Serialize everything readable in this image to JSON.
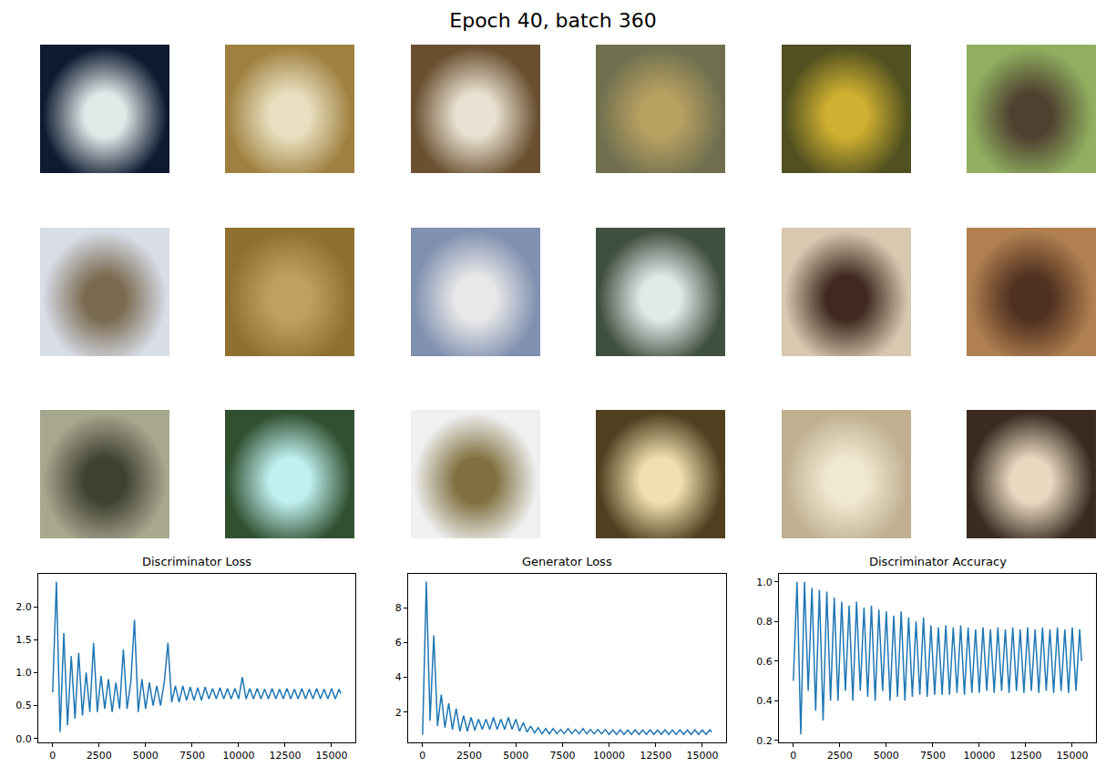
{
  "title": "Epoch 40, batch 360",
  "samples": [
    {
      "colors": [
        "#0e1a30",
        "#e0e8e8"
      ]
    },
    {
      "colors": [
        "#a08040",
        "#e8e0c0"
      ]
    },
    {
      "colors": [
        "#6a5030",
        "#e8e0d0"
      ]
    },
    {
      "colors": [
        "#707050",
        "#b8a060"
      ]
    },
    {
      "colors": [
        "#505020",
        "#d0b030"
      ]
    },
    {
      "colors": [
        "#90b060",
        "#504030"
      ]
    },
    {
      "colors": [
        "#d8dde8",
        "#7a6a50"
      ]
    },
    {
      "colors": [
        "#907030",
        "#c0a060"
      ]
    },
    {
      "colors": [
        "#8090b0",
        "#e8e8e8"
      ]
    },
    {
      "colors": [
        "#405040",
        "#e0e8e8"
      ]
    },
    {
      "colors": [
        "#d8c8b0",
        "#402a20"
      ]
    },
    {
      "colors": [
        "#b08050",
        "#503020"
      ]
    },
    {
      "colors": [
        "#a8a890",
        "#404030"
      ]
    },
    {
      "colors": [
        "#305030",
        "#c0f0f0"
      ]
    },
    {
      "colors": [
        "#f0f0f0",
        "#807040"
      ]
    },
    {
      "colors": [
        "#504020",
        "#f0e0b0"
      ]
    },
    {
      "colors": [
        "#c0b090",
        "#f0e8d0"
      ]
    },
    {
      "colors": [
        "#3a2a20",
        "#e8d8c0"
      ]
    }
  ],
  "chart_data": [
    {
      "type": "line",
      "title": "Discriminator Loss",
      "color": "#1f77b4",
      "grid": false,
      "x": [
        0,
        200,
        400,
        600,
        800,
        1000,
        1200,
        1400,
        1600,
        1800,
        2000,
        2200,
        2400,
        2600,
        2800,
        3000,
        3200,
        3400,
        3600,
        3800,
        4000,
        4200,
        4400,
        4600,
        4800,
        5000,
        5200,
        5400,
        5600,
        5800,
        6000,
        6200,
        6400,
        6600,
        6800,
        7000,
        7200,
        7400,
        7600,
        7800,
        8000,
        8200,
        8400,
        8600,
        8800,
        9000,
        9200,
        9400,
        9600,
        9800,
        10000,
        10200,
        10400,
        10600,
        10800,
        11000,
        11200,
        11400,
        11600,
        11800,
        12000,
        12200,
        12400,
        12600,
        12800,
        13000,
        13200,
        13400,
        13600,
        13800,
        14000,
        14200,
        14400,
        14600,
        14800,
        15000,
        15200,
        15400,
        15500
      ],
      "values": [
        0.7,
        2.38,
        0.1,
        1.6,
        0.2,
        1.25,
        0.3,
        1.3,
        0.35,
        1.0,
        0.4,
        1.45,
        0.4,
        0.95,
        0.45,
        0.9,
        0.4,
        0.85,
        0.45,
        1.35,
        0.45,
        0.85,
        1.8,
        0.4,
        0.9,
        0.45,
        0.85,
        0.5,
        0.8,
        0.5,
        0.85,
        1.45,
        0.55,
        0.8,
        0.55,
        0.8,
        0.58,
        0.78,
        0.58,
        0.77,
        0.58,
        0.78,
        0.6,
        0.76,
        0.6,
        0.77,
        0.6,
        0.76,
        0.6,
        0.76,
        0.6,
        0.93,
        0.6,
        0.76,
        0.6,
        0.76,
        0.6,
        0.75,
        0.6,
        0.76,
        0.6,
        0.75,
        0.6,
        0.76,
        0.6,
        0.75,
        0.6,
        0.76,
        0.6,
        0.75,
        0.6,
        0.76,
        0.6,
        0.75,
        0.6,
        0.76,
        0.6,
        0.75,
        0.68
      ],
      "xlim": [
        -775,
        16275
      ],
      "ylim": [
        -0.06,
        2.5
      ],
      "xticks": [
        0,
        2500,
        5000,
        7500,
        10000,
        12500,
        15000
      ],
      "yticks": [
        {
          "value": 0,
          "label": "0.0"
        },
        0.5,
        {
          "value": 1,
          "label": "1.0"
        },
        1.5,
        {
          "value": 2,
          "label": "2.0"
        }
      ]
    },
    {
      "type": "line",
      "title": "Generator Loss",
      "color": "#1f77b4",
      "grid": false,
      "x": [
        0,
        200,
        400,
        600,
        800,
        1000,
        1200,
        1400,
        1600,
        1800,
        2000,
        2200,
        2400,
        2600,
        2800,
        3000,
        3200,
        3400,
        3600,
        3800,
        4000,
        4200,
        4400,
        4600,
        4800,
        5000,
        5200,
        5400,
        5600,
        5800,
        6000,
        6200,
        6400,
        6600,
        6800,
        7000,
        7200,
        7400,
        7600,
        7800,
        8000,
        8200,
        8400,
        8600,
        8800,
        9000,
        9200,
        9400,
        9600,
        9800,
        10000,
        10200,
        10400,
        10600,
        10800,
        11000,
        11200,
        11400,
        11600,
        11800,
        12000,
        12200,
        12400,
        12600,
        12800,
        13000,
        13200,
        13400,
        13600,
        13800,
        14000,
        14200,
        14400,
        14600,
        14800,
        15000,
        15200,
        15400,
        15500
      ],
      "values": [
        0.7,
        9.5,
        1.5,
        6.4,
        1.2,
        3.0,
        1.1,
        2.5,
        1.0,
        2.2,
        0.9,
        1.8,
        0.9,
        1.7,
        0.95,
        1.6,
        1.0,
        1.6,
        1.0,
        1.7,
        1.0,
        1.6,
        1.0,
        1.7,
        1.0,
        1.6,
        0.9,
        1.4,
        0.85,
        1.2,
        0.8,
        1.1,
        0.75,
        1.05,
        0.75,
        1.05,
        0.75,
        1.0,
        0.75,
        1.05,
        0.75,
        1.0,
        0.75,
        1.05,
        0.75,
        1.0,
        0.75,
        1.0,
        0.75,
        1.0,
        0.72,
        0.98,
        0.72,
        0.98,
        0.72,
        0.97,
        0.72,
        0.98,
        0.72,
        0.97,
        0.72,
        0.98,
        0.72,
        0.97,
        0.72,
        0.98,
        0.72,
        0.97,
        0.72,
        0.98,
        0.72,
        0.97,
        0.72,
        0.98,
        0.72,
        0.97,
        0.72,
        0.98,
        0.85
      ],
      "xlim": [
        -775,
        16275
      ],
      "ylim": [
        0.26,
        9.94
      ],
      "xticks": [
        0,
        2500,
        5000,
        7500,
        10000,
        12500,
        15000
      ],
      "yticks": [
        2,
        4,
        6,
        8
      ]
    },
    {
      "type": "line",
      "title": "Discriminator Accuracy",
      "color": "#1f77b4",
      "grid": false,
      "x": [
        0,
        200,
        400,
        600,
        800,
        1000,
        1200,
        1400,
        1600,
        1800,
        2000,
        2200,
        2400,
        2600,
        2800,
        3000,
        3200,
        3400,
        3600,
        3800,
        4000,
        4200,
        4400,
        4600,
        4800,
        5000,
        5200,
        5400,
        5600,
        5800,
        6000,
        6200,
        6400,
        6600,
        6800,
        7000,
        7200,
        7400,
        7600,
        7800,
        8000,
        8200,
        8400,
        8600,
        8800,
        9000,
        9200,
        9400,
        9600,
        9800,
        10000,
        10200,
        10400,
        10600,
        10800,
        11000,
        11200,
        11400,
        11600,
        11800,
        12000,
        12200,
        12400,
        12600,
        12800,
        13000,
        13200,
        13400,
        13600,
        13800,
        14000,
        14200,
        14400,
        14600,
        14800,
        15000,
        15200,
        15400,
        15500
      ],
      "values": [
        0.5,
        1.0,
        0.23,
        1.0,
        0.45,
        0.97,
        0.35,
        0.96,
        0.3,
        0.95,
        0.4,
        0.92,
        0.4,
        0.9,
        0.45,
        0.88,
        0.4,
        0.9,
        0.45,
        0.87,
        0.42,
        0.88,
        0.4,
        0.86,
        0.45,
        0.85,
        0.4,
        0.83,
        0.42,
        0.85,
        0.4,
        0.82,
        0.42,
        0.8,
        0.43,
        0.82,
        0.42,
        0.78,
        0.43,
        0.77,
        0.43,
        0.78,
        0.43,
        0.77,
        0.44,
        0.78,
        0.43,
        0.77,
        0.44,
        0.76,
        0.44,
        0.77,
        0.45,
        0.76,
        0.44,
        0.77,
        0.45,
        0.76,
        0.44,
        0.77,
        0.45,
        0.76,
        0.44,
        0.77,
        0.45,
        0.76,
        0.44,
        0.77,
        0.45,
        0.76,
        0.44,
        0.77,
        0.45,
        0.76,
        0.44,
        0.77,
        0.45,
        0.76,
        0.6
      ],
      "xlim": [
        -775,
        16275
      ],
      "ylim": [
        0.19,
        1.04
      ],
      "xticks": [
        0,
        2500,
        5000,
        7500,
        10000,
        12500,
        15000
      ],
      "yticks": [
        0.2,
        0.4,
        0.6,
        0.8,
        {
          "value": 1,
          "label": "1.0"
        }
      ]
    }
  ]
}
